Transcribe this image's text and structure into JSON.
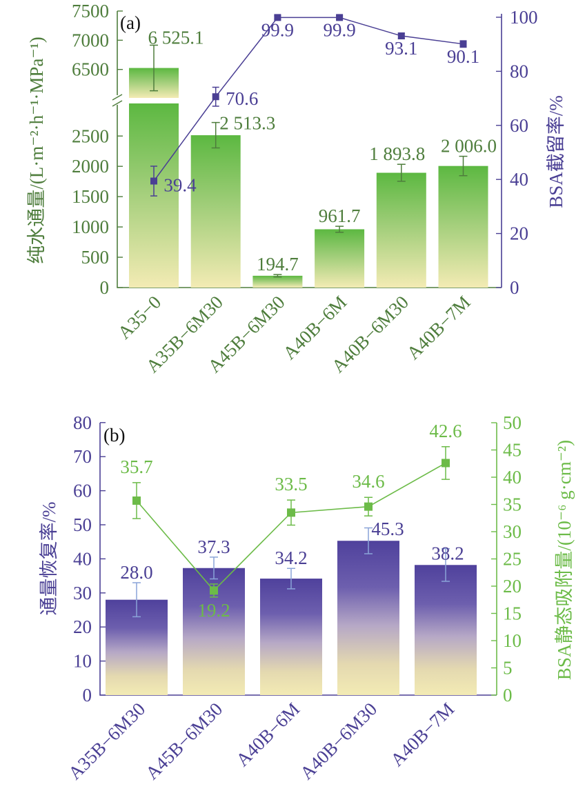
{
  "colors": {
    "green_text": "#4e7d3c",
    "green_bar": "#5cb841",
    "bar_base": "#f3ebb4",
    "purple": "#4a3f94",
    "purple_bar": "#5647a0",
    "light_green": "#6cbb48",
    "err_blue": "#8aa4d8"
  },
  "chart_data": [
    {
      "type": "bar",
      "panel_label": "(a)",
      "categories": [
        "A35−0",
        "A35B−6M30",
        "A45B−6M30",
        "A40B−6M",
        "A40B−6M30",
        "A40B−7M"
      ],
      "ylabel": "纯水通量/(L·m⁻²·h⁻¹·MPa⁻¹)",
      "y_break": {
        "lower": [
          0,
          3000
        ],
        "upper": [
          6000,
          7500
        ]
      },
      "yticks_lower": [
        0,
        500,
        1000,
        1500,
        2000,
        2500
      ],
      "yticks_upper": [
        6500,
        7000,
        7500
      ],
      "ytick_labels_lower": [
        "0",
        "500",
        "1 000",
        "1 500",
        "2 000",
        "2 500"
      ],
      "ytick_labels_upper": [
        "6 500",
        "7 000",
        "7 500"
      ],
      "series": [
        {
          "name": "纯水通量",
          "kind": "bar",
          "values": [
            6525.1,
            2513.3,
            194.7,
            961.7,
            1893.8,
            2006.0
          ],
          "errors": [
            390,
            210,
            20,
            50,
            140,
            160
          ],
          "labels": [
            "6 525.1",
            "2 513.3",
            "194.7",
            "961.7",
            "1 893.8",
            "2 006.0"
          ]
        },
        {
          "name": "BSA截留率",
          "kind": "line",
          "axis": "right",
          "values": [
            39.4,
            70.6,
            99.9,
            99.9,
            93.1,
            90.1
          ],
          "errors": [
            5.5,
            3.5,
            0.6,
            0.6,
            1.0,
            1.2
          ],
          "labels": [
            "39.4",
            "70.6",
            "99.9",
            "99.9",
            "93.1",
            "90.1"
          ]
        }
      ],
      "y2label": "BSA截留率/%",
      "y2lim": [
        0,
        100
      ],
      "y2ticks": [
        0,
        20,
        40,
        60,
        80,
        100
      ]
    },
    {
      "type": "bar",
      "panel_label": "(b)",
      "categories": [
        "A35B−6M30",
        "A45B−6M30",
        "A40B−6M",
        "A40B−6M30",
        "A40B−7M"
      ],
      "ylabel": "通量恢复率/%",
      "ylim": [
        0,
        80
      ],
      "yticks": [
        0,
        10,
        20,
        30,
        40,
        50,
        60,
        70,
        80
      ],
      "series": [
        {
          "name": "通量恢复率",
          "kind": "bar",
          "values": [
            28.0,
            37.3,
            34.2,
            45.3,
            38.2
          ],
          "errors": [
            5.0,
            3.2,
            3.0,
            3.8,
            4.8
          ],
          "labels": [
            "28.0",
            "37.3",
            "34.2",
            "45.3",
            "38.2"
          ]
        },
        {
          "name": "BSA静态吸附量",
          "kind": "line",
          "axis": "right",
          "values": [
            35.7,
            19.2,
            33.5,
            34.6,
            42.6
          ],
          "errors": [
            3.3,
            1.2,
            2.3,
            1.7,
            3.0
          ],
          "labels": [
            "35.7",
            "19.2",
            "33.5",
            "34.6",
            "42.6"
          ]
        }
      ],
      "y2label": "BSA静态吸附量/(10⁻⁶ g·cm⁻²)",
      "y2lim": [
        0,
        50
      ],
      "y2ticks": [
        0,
        5,
        10,
        15,
        20,
        25,
        30,
        35,
        40,
        45,
        50
      ]
    }
  ]
}
